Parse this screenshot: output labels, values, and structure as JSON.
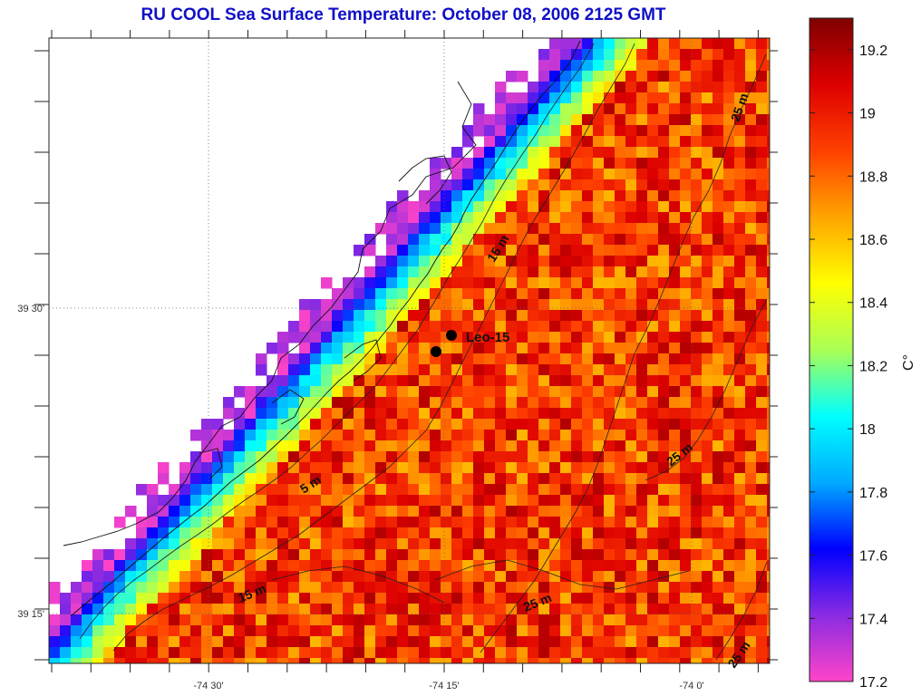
{
  "title": "RU COOL  Sea Surface Temperature:  October 08, 2006 2125 GMT",
  "map": {
    "lat_labels": [
      "39 30'",
      "39 15'"
    ],
    "lon_labels": [
      "-74 30'",
      "-74 15'",
      "-74 0'"
    ],
    "station": {
      "name": "Leo-15"
    },
    "depth_contours": [
      {
        "label": "5 m"
      },
      {
        "label": "15 m"
      },
      {
        "label": "15 m"
      },
      {
        "label": "25 m"
      },
      {
        "label": "25 m"
      },
      {
        "label": "25 m"
      },
      {
        "label": "25 m"
      }
    ]
  },
  "colorbar": {
    "unit": "C°",
    "min": 17.2,
    "max": 19.3,
    "tick_values": [
      "17.2",
      "17.4",
      "17.6",
      "17.8",
      "18",
      "18.2",
      "18.4",
      "18.6",
      "18.8",
      "19",
      "19.2"
    ],
    "colormap_stops": [
      "#ff44c8",
      "#8a2be2",
      "#0000ff",
      "#00aaff",
      "#00ffff",
      "#aaff55",
      "#ffff00",
      "#ffa500",
      "#ff4000",
      "#dd0000",
      "#800000"
    ]
  }
}
